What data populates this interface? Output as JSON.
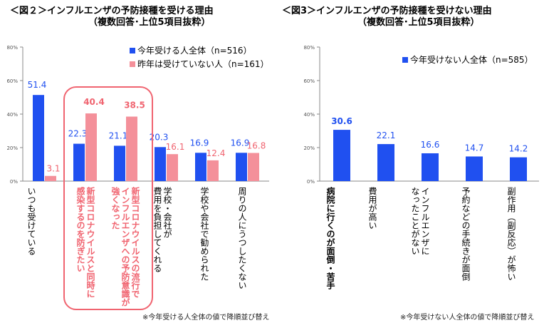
{
  "colors": {
    "blue": "#2050f0",
    "pink": "#f4909a",
    "highlight": "#f06470",
    "pink_text": "#f06470"
  },
  "chart_data": [
    {
      "type": "bar",
      "title": "＜図２＞インフルエンザの予防接種を受ける理由",
      "subtitle": "（複数回答･上位5項目抜粋）",
      "categories": [
        "いつも受けている",
        "新型コロナウイルスと同時に\n感染するのを防ぎたい",
        "新型コロナウイルスの流行で\nインフルエンザへの予防意識が\n強くなった",
        "学校・会社が\n費用を負担してくれる",
        "学校や会社で勧められた",
        "周りの人にうつしたくない"
      ],
      "series": [
        {
          "name": "今年受ける人全体（n=516）",
          "values": [
            51.4,
            22.3,
            21.1,
            20.3,
            16.9,
            16.9
          ]
        },
        {
          "name": "昨年は受けていない人（n=161）",
          "values": [
            3.1,
            40.4,
            38.5,
            16.1,
            12.4,
            16.8
          ]
        }
      ],
      "value_labels": [
        [
          "51.4",
          "22.3",
          "21.1",
          "20.3",
          "16.9",
          "16.9"
        ],
        [
          "3.1",
          "40.4",
          "38.5",
          "16.1",
          "12.4",
          "16.8"
        ]
      ],
      "highlighted_categories": [
        1,
        2
      ],
      "yticks": [
        "0%",
        "20%",
        "40%",
        "60%",
        "80%"
      ],
      "ylim": [
        0,
        80
      ],
      "legend": "top-right",
      "note": "※今年受ける人全体の値で降順並び替え"
    },
    {
      "type": "bar",
      "title": "＜図3＞インフルエンザの予防接種を受けない理由",
      "subtitle": "（複数回答･上位5項目抜粋）",
      "categories": [
        "病院に行くのが面倒・苦手",
        "費用が高い",
        "インフルエンザに\nなったことがない",
        "予約などの手続きが面倒",
        "副作用（副反応）が怖い"
      ],
      "series": [
        {
          "name": "今年受けない人全体（n=585）",
          "values": [
            30.6,
            22.1,
            16.6,
            14.7,
            14.2
          ]
        }
      ],
      "value_labels": [
        [
          "30.6",
          "22.1",
          "16.6",
          "14.7",
          "14.2"
        ]
      ],
      "yticks": [
        "0%",
        "20%",
        "40%",
        "60%",
        "80%"
      ],
      "ylim": [
        0,
        80
      ],
      "legend": "top-right",
      "note": "※今年受けない人全体の値で降順並び替え"
    }
  ]
}
